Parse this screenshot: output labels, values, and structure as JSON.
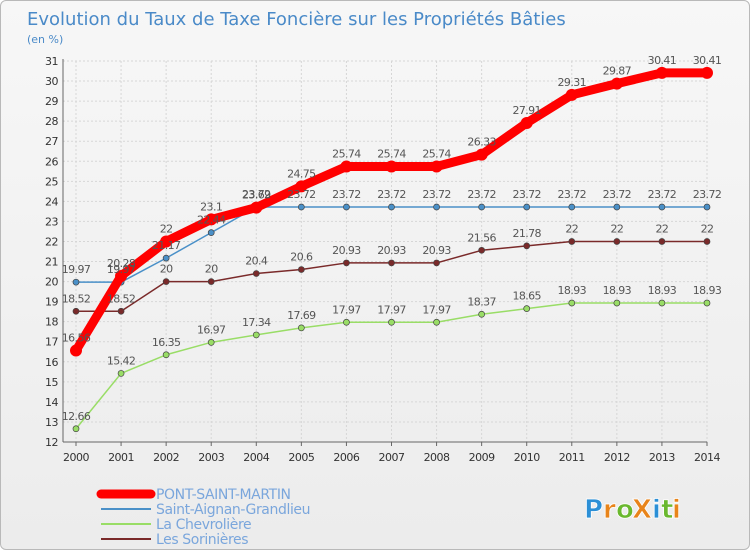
{
  "chart_data": {
    "type": "line",
    "title": "Evolution du Taux de Taxe Foncière sur les Propriétés Bâties",
    "ylabel": "(en %)",
    "xlabel": "",
    "ylim": [
      12,
      31
    ],
    "yticks": [
      12,
      13,
      14,
      15,
      16,
      17,
      18,
      19,
      20,
      21,
      22,
      23,
      24,
      25,
      26,
      27,
      28,
      29,
      30,
      31
    ],
    "x": [
      "2000",
      "2001",
      "2002",
      "2003",
      "2004",
      "2005",
      "2006",
      "2007",
      "2008",
      "2009",
      "2010",
      "2011",
      "2012",
      "2013",
      "2014"
    ],
    "series": [
      {
        "name": "PONT-SAINT-MARTIN",
        "color": "#ff0000",
        "values": [
          16.56,
          20.28,
          22,
          23.1,
          23.69,
          24.75,
          25.74,
          25.74,
          25.74,
          26.33,
          27.91,
          29.31,
          29.87,
          30.41,
          30.41
        ],
        "labels": [
          "16.56",
          "20.28",
          "22",
          "23.1",
          "23.69",
          "24.75",
          "25.74",
          "25.74",
          "25.74",
          "26.33",
          "27.91",
          "29.31",
          "29.87",
          "30.41",
          "30.41"
        ]
      },
      {
        "name": "Saint-Aignan-Grandlieu",
        "color": "#4a90c8",
        "values": [
          19.97,
          19.97,
          21.17,
          22.44,
          23.72,
          23.72,
          23.72,
          23.72,
          23.72,
          23.72,
          23.72,
          23.72,
          23.72,
          23.72,
          23.72
        ],
        "labels": [
          "19.97",
          "19.97",
          "21.17",
          "22.44",
          "23.72",
          "23.72",
          "23.72",
          "23.72",
          "23.72",
          "23.72",
          "23.72",
          "23.72",
          "23.72",
          "23.72",
          "23.72"
        ]
      },
      {
        "name": "La Chevrolière",
        "color": "#99dd66",
        "values": [
          12.66,
          15.42,
          16.35,
          16.97,
          17.34,
          17.69,
          17.97,
          17.97,
          17.97,
          18.37,
          18.65,
          18.93,
          18.93,
          18.93,
          18.93
        ],
        "labels": [
          "12.66",
          "15.42",
          "16.35",
          "16.97",
          "17.34",
          "17.69",
          "17.97",
          "17.97",
          "17.97",
          "18.37",
          "18.65",
          "18.93",
          "18.93",
          "18.93",
          "18.93"
        ]
      },
      {
        "name": "Les Sorinières",
        "color": "#7a2a2a",
        "values": [
          18.52,
          18.52,
          20,
          20,
          20.4,
          20.6,
          20.93,
          20.93,
          20.93,
          21.56,
          21.78,
          22,
          22,
          22,
          22
        ],
        "labels": [
          "18.52",
          "18.52",
          "20",
          "20",
          "20.4",
          "20.6",
          "20.93",
          "20.93",
          "20.93",
          "21.56",
          "21.78",
          "22",
          "22",
          "22",
          "22"
        ]
      }
    ],
    "legend": "bottom-left"
  },
  "logo": {
    "text": "ProXiti",
    "letters": [
      "P",
      "r",
      "o",
      "X",
      "i",
      "t",
      "i"
    ],
    "colors": [
      "#2b8fd6",
      "#e8841a",
      "#6ab82e",
      "#e8841a",
      "#2b8fd6",
      "#6ab82e",
      "#e8841a"
    ]
  }
}
